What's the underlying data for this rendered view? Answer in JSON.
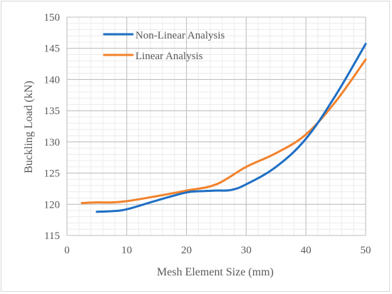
{
  "chart_data": {
    "type": "line",
    "title": "",
    "xlabel": "Mesh Element Size (mm)",
    "ylabel": "Buckling Load (kN)",
    "xlim": [
      0,
      50
    ],
    "ylim": [
      115,
      150
    ],
    "x_ticks": [
      0,
      10,
      20,
      30,
      40,
      50
    ],
    "y_ticks": [
      115,
      120,
      125,
      130,
      135,
      140,
      145,
      150
    ],
    "grid": {
      "major": true,
      "minor": true,
      "minor_x_step": 2,
      "minor_y_step": 1
    },
    "legend_position": "top-left",
    "series": [
      {
        "name": "Non-Linear Analysis",
        "color": "#1f6fc5",
        "points": [
          [
            5,
            118.8
          ],
          [
            7.5,
            118.9
          ],
          [
            10,
            119.2
          ],
          [
            15,
            120.6
          ],
          [
            20,
            121.9
          ],
          [
            22.5,
            122.1
          ],
          [
            25,
            122.2
          ],
          [
            27.5,
            122.3
          ],
          [
            30,
            123.2
          ],
          [
            35,
            126.0
          ],
          [
            40,
            130.5
          ],
          [
            45,
            137.5
          ],
          [
            50,
            145.7
          ]
        ]
      },
      {
        "name": "Linear Analysis",
        "color": "#f2822b",
        "points": [
          [
            2.5,
            120.2
          ],
          [
            5,
            120.3
          ],
          [
            7.5,
            120.3
          ],
          [
            10,
            120.5
          ],
          [
            15,
            121.3
          ],
          [
            20,
            122.2
          ],
          [
            25,
            123.2
          ],
          [
            30,
            126.0
          ],
          [
            35,
            128.2
          ],
          [
            40,
            131.2
          ],
          [
            45,
            136.5
          ],
          [
            50,
            143.2
          ]
        ]
      }
    ]
  }
}
